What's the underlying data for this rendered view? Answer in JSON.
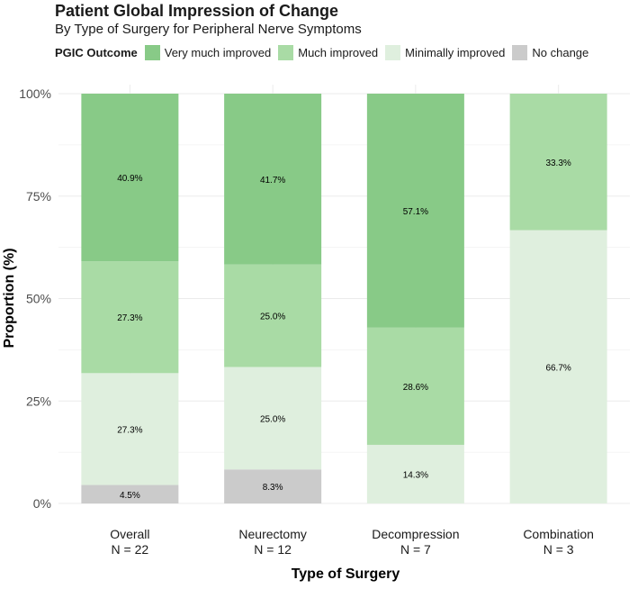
{
  "title": "Patient Global Impression of Change",
  "subtitle": "By Type of Surgery for Peripheral Nerve Symptoms",
  "legend": {
    "title": "PGIC Outcome",
    "position": "top",
    "items": [
      {
        "label": "Very much improved",
        "color": "#88CA87"
      },
      {
        "label": "Much improved",
        "color": "#A9DBA5"
      },
      {
        "label": "Minimally improved",
        "color": "#DFEFDE"
      },
      {
        "label": "No change",
        "color": "#CBCBCB"
      }
    ]
  },
  "chart_data": {
    "type": "bar",
    "stacked": true,
    "title": "Patient Global Impression of Change",
    "subtitle": "By Type of Surgery for Peripheral Nerve Symptoms",
    "xlabel": "Type of Surgery",
    "ylabel": "Proportion (%)",
    "ylim": [
      0,
      100
    ],
    "yticks": [
      "0%",
      "25%",
      "50%",
      "75%",
      "100%"
    ],
    "grid": true,
    "categories": [
      {
        "name": "Overall",
        "n": "N = 22"
      },
      {
        "name": "Neurectomy",
        "n": "N = 12"
      },
      {
        "name": "Decompression",
        "n": "N = 7"
      },
      {
        "name": "Combination",
        "n": "N = 3"
      }
    ],
    "series": [
      {
        "name": "No change",
        "color": "#CBCBCB",
        "values": [
          4.5,
          8.3,
          0,
          0
        ],
        "labels": [
          "4.5%",
          "8.3%",
          "",
          ""
        ]
      },
      {
        "name": "Minimally improved",
        "color": "#DFEFDE",
        "values": [
          27.3,
          25.0,
          14.3,
          66.7
        ],
        "labels": [
          "27.3%",
          "25.0%",
          "14.3%",
          "66.7%"
        ]
      },
      {
        "name": "Much improved",
        "color": "#A9DBA5",
        "values": [
          27.3,
          25.0,
          28.6,
          33.3
        ],
        "labels": [
          "27.3%",
          "25.0%",
          "28.6%",
          "33.3%"
        ]
      },
      {
        "name": "Very much improved",
        "color": "#88CA87",
        "values": [
          40.9,
          41.7,
          57.1,
          0
        ],
        "labels": [
          "40.9%",
          "41.7%",
          "57.1%",
          ""
        ]
      }
    ]
  }
}
